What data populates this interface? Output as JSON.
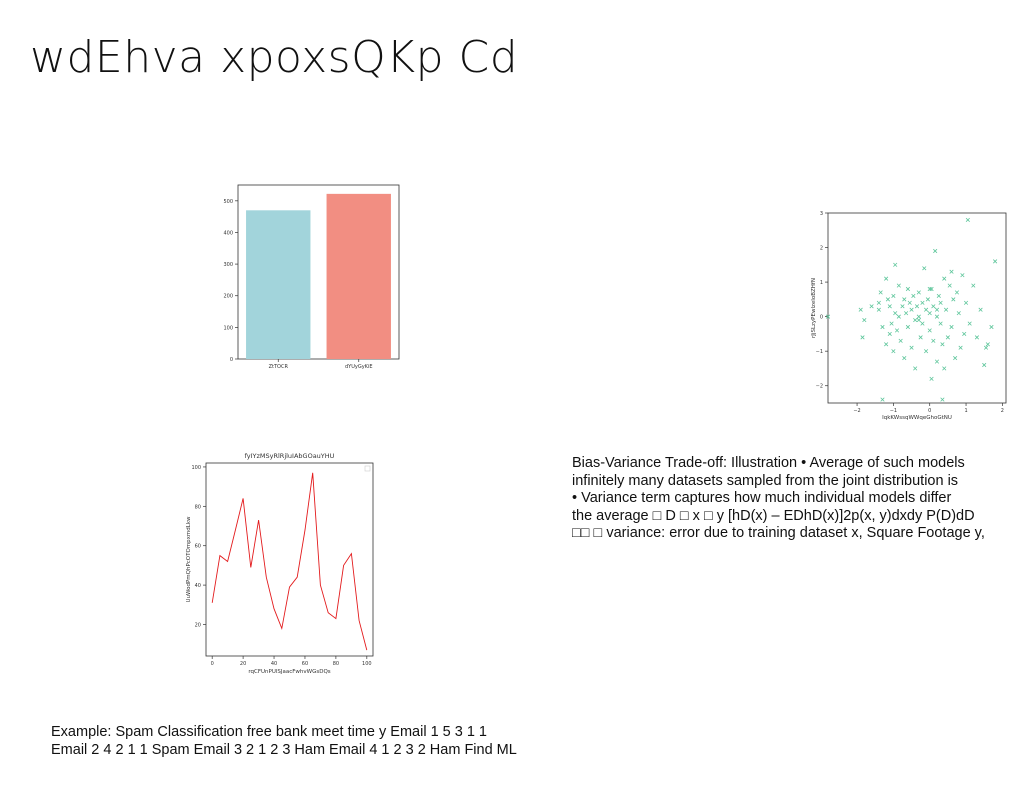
{
  "slide": {
    "title": "wdEhva xpoxsQKp Cd"
  },
  "bias_variance_text": {
    "lines": [
      "Bias-Variance Trade-off: Illustration • Average of such models",
      "infinitely many datasets sampled from the joint distribution is",
      "• Variance term captures how much individual models differ",
      "the average □ D □ x □ y [hD(x) – EDhD(x)]2p(x, y)dxdy P(D)dD",
      "□□ □ variance: error due to training dataset x, Square Footage y,"
    ]
  },
  "example_text": {
    "lines": [
      "Example: Spam Classification free bank meet time y Email 1 5 3 1 1",
      "Email 2 4 2 1 1 Spam Email 3 2 1 2 3 Ham Email 4 1 2 3 2 Ham Find ML"
    ]
  },
  "chart_data": [
    {
      "type": "bar",
      "title": "",
      "xlabel": "",
      "ylabel": "",
      "categories": [
        "ZtTOCR",
        "dYUyGyKiE"
      ],
      "values": [
        470,
        522
      ],
      "colors": [
        "#a2d4db",
        "#f28e82"
      ],
      "ylim": [
        0,
        550
      ],
      "yticks": [
        0,
        100,
        200,
        300,
        400,
        500
      ],
      "grid": false
    },
    {
      "type": "scatter",
      "title": "",
      "xlabel": "IqkKWssqWWqeGhoGtNU",
      "ylabel": "rJjSLzyPEwlzeIoBZHfN",
      "marker": "x",
      "color": "#5cc59a",
      "xlim": [
        -2.8,
        2.1
      ],
      "ylim": [
        -2.5,
        3.0
      ],
      "xticks": [
        -2,
        -1,
        0,
        1,
        2
      ],
      "yticks": [
        -2,
        -1,
        0,
        1,
        2,
        3
      ],
      "grid": false,
      "x": [
        -2.8,
        -1.9,
        -1.8,
        -1.85,
        -1.6,
        -1.4,
        -1.4,
        -1.35,
        -1.3,
        -1.2,
        -1.2,
        -1.15,
        -1.1,
        -1.1,
        -1.05,
        -1.0,
        -1.0,
        -0.95,
        -0.9,
        -0.85,
        -0.85,
        -0.8,
        -0.75,
        -0.7,
        -0.7,
        -0.65,
        -0.6,
        -0.6,
        -0.55,
        -0.5,
        -0.5,
        -0.45,
        -0.4,
        -0.4,
        -0.35,
        -0.3,
        -0.3,
        -0.25,
        -0.2,
        -0.2,
        -0.15,
        -0.1,
        -0.1,
        -0.05,
        0.0,
        0.0,
        0.05,
        0.05,
        0.1,
        0.1,
        0.15,
        0.2,
        0.2,
        0.25,
        0.3,
        0.3,
        0.35,
        0.4,
        0.4,
        0.45,
        0.5,
        0.55,
        0.6,
        0.6,
        0.65,
        0.7,
        0.75,
        0.8,
        0.85,
        0.9,
        0.95,
        1.0,
        1.05,
        1.1,
        1.2,
        1.3,
        1.4,
        1.5,
        1.55,
        1.6,
        1.7,
        1.8,
        -1.3,
        -0.95,
        0.35,
        0.0,
        0.2,
        -0.3
      ],
      "y": [
        0.0,
        0.2,
        -0.1,
        -0.6,
        0.3,
        0.4,
        0.2,
        0.7,
        -0.3,
        1.1,
        -0.8,
        0.5,
        0.3,
        -0.5,
        -0.2,
        0.6,
        -1.0,
        0.1,
        -0.4,
        0.9,
        0.0,
        -0.7,
        0.3,
        0.5,
        -1.2,
        0.1,
        0.8,
        -0.3,
        0.4,
        -0.9,
        0.2,
        0.6,
        -0.1,
        -1.5,
        0.3,
        0.0,
        0.7,
        -0.6,
        0.4,
        -0.2,
        1.4,
        0.2,
        -1.0,
        0.5,
        0.1,
        -0.4,
        0.8,
        -1.8,
        0.3,
        -0.7,
        1.9,
        0.0,
        -1.3,
        0.6,
        -0.2,
        0.4,
        -0.8,
        1.1,
        -1.5,
        0.2,
        -0.6,
        0.9,
        1.3,
        -0.3,
        0.5,
        -1.2,
        0.7,
        0.1,
        -0.9,
        1.2,
        -0.5,
        0.4,
        2.8,
        -0.2,
        0.9,
        -0.6,
        0.2,
        -1.4,
        -0.9,
        -0.8,
        -0.3,
        1.6,
        -2.4,
        1.5,
        -2.4,
        0.8,
        0.2,
        -0.1
      ]
    },
    {
      "type": "line",
      "title": "fyIYzMSyRlRjluIAbGOauYHU",
      "xlabel": "rqCFUnPUlSJaacFwhvWGsDQs",
      "ylabel": "UuWodPmQhPcOTOmpxmdLkw",
      "color": "#e31a1c",
      "xlim": [
        -4,
        104
      ],
      "ylim": [
        4,
        102
      ],
      "xticks": [
        0,
        20,
        40,
        60,
        80,
        100
      ],
      "yticks": [
        20,
        40,
        60,
        80,
        100
      ],
      "grid": false,
      "x": [
        0,
        5,
        10,
        15,
        20,
        25,
        30,
        35,
        40,
        45,
        50,
        55,
        60,
        65,
        70,
        75,
        80,
        85,
        90,
        95,
        100
      ],
      "y": [
        31,
        55,
        52,
        68,
        84,
        49,
        73,
        44,
        28,
        18,
        39,
        44,
        68,
        97,
        40,
        26,
        23,
        50,
        56,
        22,
        7
      ]
    }
  ]
}
